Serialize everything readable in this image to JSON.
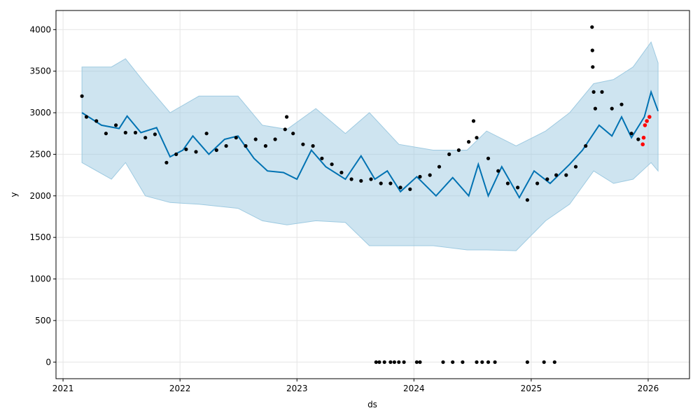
{
  "chart_data": {
    "type": "line",
    "xlabel": "ds",
    "ylabel": "y",
    "x_ticks": [
      "2021",
      "2022",
      "2023",
      "2024",
      "2025",
      "2026"
    ],
    "y_ticks": [
      "0",
      "500",
      "1000",
      "1500",
      "2000",
      "2500",
      "3000",
      "3500",
      "4000"
    ],
    "xlim": [
      "2020-12-10",
      "2026-05-10"
    ],
    "ylim": [
      -200,
      4230
    ],
    "grid": true,
    "legend": "none",
    "colors": {
      "forecast_line": "#0072B2",
      "uncertainty_band": "#9ecae1",
      "observed_points": "#000000",
      "recent_points": "#ff0000",
      "grid": "#e5e5e5"
    },
    "series": [
      {
        "role": "forecast",
        "points": [
          [
            "2021-03-01",
            3000
          ],
          [
            "2021-05-01",
            2850
          ],
          [
            "2021-06-25",
            2810
          ],
          [
            "2021-07-20",
            2960
          ],
          [
            "2021-09-01",
            2760
          ],
          [
            "2021-10-20",
            2820
          ],
          [
            "2021-12-01",
            2470
          ],
          [
            "2022-01-10",
            2550
          ],
          [
            "2022-02-10",
            2720
          ],
          [
            "2022-04-01",
            2500
          ],
          [
            "2022-05-20",
            2680
          ],
          [
            "2022-07-01",
            2720
          ],
          [
            "2022-08-20",
            2450
          ],
          [
            "2022-10-01",
            2300
          ],
          [
            "2022-11-20",
            2280
          ],
          [
            "2023-01-01",
            2200
          ],
          [
            "2023-02-15",
            2550
          ],
          [
            "2023-04-01",
            2350
          ],
          [
            "2023-06-01",
            2200
          ],
          [
            "2023-07-20",
            2480
          ],
          [
            "2023-09-01",
            2200
          ],
          [
            "2023-10-10",
            2300
          ],
          [
            "2023-11-20",
            2050
          ],
          [
            "2024-01-10",
            2230
          ],
          [
            "2024-03-10",
            2000
          ],
          [
            "2024-05-01",
            2220
          ],
          [
            "2024-06-20",
            2000
          ],
          [
            "2024-07-20",
            2380
          ],
          [
            "2024-08-20",
            2000
          ],
          [
            "2024-10-01",
            2350
          ],
          [
            "2024-11-25",
            1980
          ],
          [
            "2025-01-10",
            2300
          ],
          [
            "2025-03-01",
            2150
          ],
          [
            "2025-05-01",
            2380
          ],
          [
            "2025-06-10",
            2550
          ],
          [
            "2025-08-01",
            2850
          ],
          [
            "2025-09-10",
            2720
          ],
          [
            "2025-10-10",
            2950
          ],
          [
            "2025-11-10",
            2700
          ],
          [
            "2025-12-20",
            2950
          ],
          [
            "2026-01-10",
            3250
          ],
          [
            "2026-02-01",
            3020
          ]
        ],
        "band": [
          [
            "2021-03-01",
            2400,
            3550
          ],
          [
            "2021-06-01",
            2200,
            3550
          ],
          [
            "2021-07-15",
            2400,
            3650
          ],
          [
            "2021-09-15",
            2000,
            3350
          ],
          [
            "2021-12-01",
            1920,
            3000
          ],
          [
            "2022-03-01",
            1900,
            3200
          ],
          [
            "2022-07-01",
            1850,
            3200
          ],
          [
            "2022-09-15",
            1700,
            2850
          ],
          [
            "2022-12-01",
            1650,
            2800
          ],
          [
            "2023-03-01",
            1700,
            3050
          ],
          [
            "2023-06-01",
            1680,
            2750
          ],
          [
            "2023-08-15",
            1400,
            3000
          ],
          [
            "2023-11-15",
            1400,
            2620
          ],
          [
            "2024-03-01",
            1400,
            2550
          ],
          [
            "2024-06-15",
            1350,
            2550
          ],
          [
            "2024-08-15",
            1350,
            2780
          ],
          [
            "2024-11-15",
            1340,
            2600
          ],
          [
            "2025-02-15",
            1700,
            2780
          ],
          [
            "2025-05-01",
            1900,
            3000
          ],
          [
            "2025-07-15",
            2300,
            3350
          ],
          [
            "2025-09-15",
            2150,
            3400
          ],
          [
            "2025-11-15",
            2200,
            3550
          ],
          [
            "2026-01-10",
            2400,
            3850
          ],
          [
            "2026-02-01",
            2300,
            3600
          ]
        ]
      },
      {
        "role": "observed",
        "points": [
          [
            "2021-03-01",
            3200
          ],
          [
            "2021-03-15",
            2950
          ],
          [
            "2021-04-15",
            2900
          ],
          [
            "2021-05-15",
            2750
          ],
          [
            "2021-06-15",
            2850
          ],
          [
            "2021-07-15",
            2760
          ],
          [
            "2021-08-15",
            2760
          ],
          [
            "2021-09-15",
            2700
          ],
          [
            "2021-10-15",
            2740
          ],
          [
            "2021-11-20",
            2400
          ],
          [
            "2021-12-20",
            2500
          ],
          [
            "2022-01-20",
            2560
          ],
          [
            "2022-02-20",
            2530
          ],
          [
            "2022-03-25",
            2750
          ],
          [
            "2022-04-25",
            2550
          ],
          [
            "2022-05-25",
            2600
          ],
          [
            "2022-06-25",
            2700
          ],
          [
            "2022-07-25",
            2600
          ],
          [
            "2022-08-25",
            2680
          ],
          [
            "2022-09-25",
            2600
          ],
          [
            "2022-10-25",
            2680
          ],
          [
            "2022-11-25",
            2800
          ],
          [
            "2022-12-20",
            2750
          ],
          [
            "2023-01-20",
            2620
          ],
          [
            "2023-02-20",
            2600
          ],
          [
            "2023-03-20",
            2450
          ],
          [
            "2023-04-20",
            2380
          ],
          [
            "2023-05-20",
            2280
          ],
          [
            "2023-06-20",
            2200
          ],
          [
            "2023-07-20",
            2180
          ],
          [
            "2023-08-20",
            2200
          ],
          [
            "2023-09-20",
            2150
          ],
          [
            "2023-10-20",
            2150
          ],
          [
            "2023-11-20",
            2100
          ],
          [
            "2023-12-20",
            2080
          ],
          [
            "2024-01-20",
            2230
          ],
          [
            "2024-02-20",
            2250
          ],
          [
            "2024-03-20",
            2350
          ],
          [
            "2024-04-20",
            2500
          ],
          [
            "2024-05-20",
            2550
          ],
          [
            "2024-06-20",
            2650
          ],
          [
            "2024-07-15",
            2700
          ],
          [
            "2024-08-20",
            2450
          ],
          [
            "2024-09-20",
            2300
          ],
          [
            "2024-10-20",
            2150
          ],
          [
            "2024-11-20",
            2100
          ],
          [
            "2024-12-20",
            1950
          ],
          [
            "2025-01-20",
            2150
          ],
          [
            "2025-02-20",
            2200
          ],
          [
            "2025-03-20",
            2250
          ],
          [
            "2025-04-20",
            2250
          ],
          [
            "2025-05-20",
            2350
          ],
          [
            "2025-06-20",
            2600
          ],
          [
            "2025-07-15",
            3250
          ],
          [
            "2025-07-20",
            3050
          ],
          [
            "2025-08-10",
            3250
          ],
          [
            "2025-09-10",
            3050
          ],
          [
            "2025-10-10",
            3100
          ],
          [
            "2025-11-10",
            2750
          ],
          [
            "2025-12-01",
            2680
          ],
          [
            "2025-07-10",
            4030
          ],
          [
            "2025-07-11",
            3750
          ],
          [
            "2025-07-12",
            3550
          ],
          [
            "2022-11-30",
            2950
          ],
          [
            "2024-07-05",
            2900
          ],
          [
            "2023-09-05",
            0
          ],
          [
            "2023-09-15",
            0
          ],
          [
            "2023-10-01",
            0
          ],
          [
            "2023-10-20",
            0
          ],
          [
            "2023-11-01",
            0
          ],
          [
            "2023-11-15",
            0
          ],
          [
            "2023-12-01",
            0
          ],
          [
            "2024-01-10",
            0
          ],
          [
            "2024-01-20",
            0
          ],
          [
            "2024-04-01",
            0
          ],
          [
            "2024-05-01",
            0
          ],
          [
            "2024-06-01",
            0
          ],
          [
            "2024-07-15",
            0
          ],
          [
            "2024-08-01",
            0
          ],
          [
            "2024-08-20",
            0
          ],
          [
            "2024-09-10",
            0
          ],
          [
            "2024-12-20",
            0
          ],
          [
            "2025-02-10",
            0
          ],
          [
            "2025-03-15",
            0
          ]
        ]
      },
      {
        "role": "recent",
        "points": [
          [
            "2025-12-15",
            2620
          ],
          [
            "2025-12-18",
            2700
          ],
          [
            "2025-12-22",
            2850
          ],
          [
            "2025-12-28",
            2900
          ],
          [
            "2026-01-05",
            2950
          ]
        ]
      }
    ]
  }
}
